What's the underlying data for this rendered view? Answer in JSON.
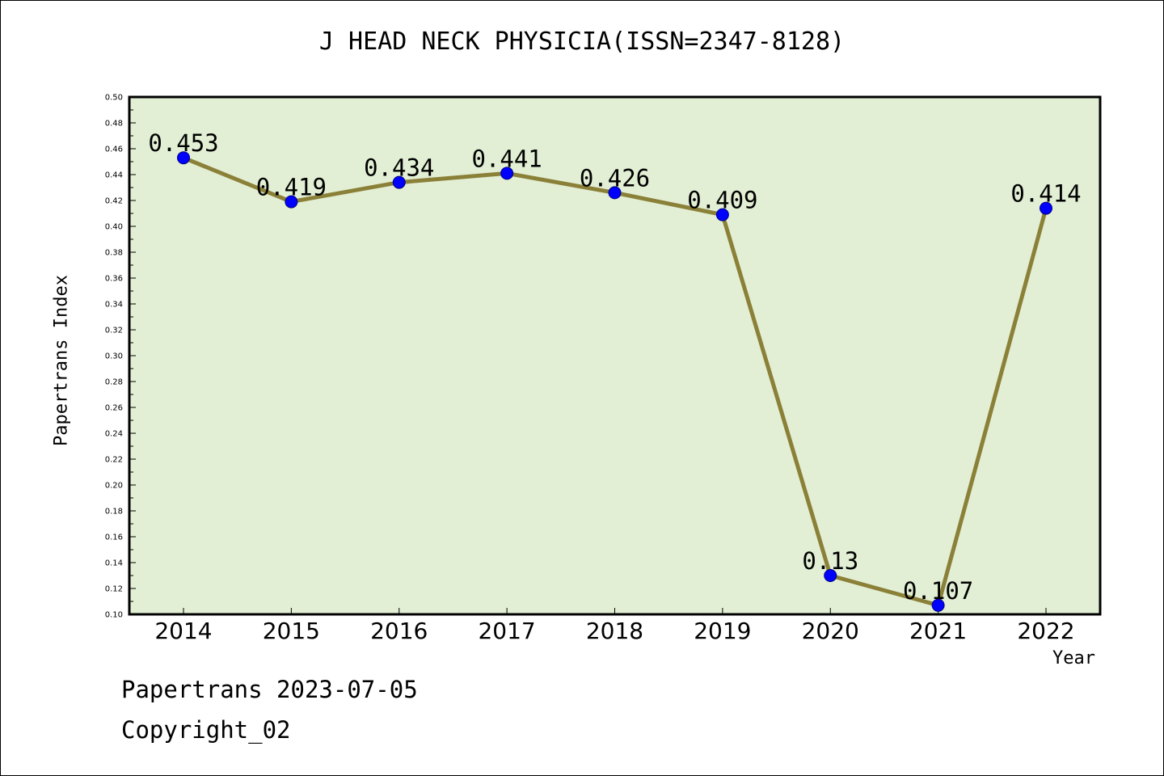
{
  "chart_data": {
    "type": "line",
    "title": "J HEAD NECK PHYSICIA(ISSN=2347-8128)",
    "xlabel": "Year",
    "ylabel": "Papertrans Index",
    "categories": [
      "2014",
      "2015",
      "2016",
      "2017",
      "2018",
      "2019",
      "2020",
      "2021",
      "2022"
    ],
    "values": [
      0.453,
      0.419,
      0.434,
      0.441,
      0.426,
      0.409,
      0.13,
      0.107,
      0.414
    ],
    "data_labels": [
      "0.453",
      "0.419",
      "0.434",
      "0.441",
      "0.426",
      "0.409",
      "0.13",
      "0.107",
      "0.414"
    ],
    "ylim": [
      0.1,
      0.5
    ],
    "y_ticks": [
      "0.10",
      "0.12",
      "0.14",
      "0.16",
      "0.18",
      "0.20",
      "0.22",
      "0.24",
      "0.26",
      "0.28",
      "0.30",
      "0.32",
      "0.34",
      "0.36",
      "0.38",
      "0.40",
      "0.42",
      "0.44",
      "0.46",
      "0.48",
      "0.50"
    ],
    "grid": false,
    "colors": {
      "plot_background": "#e2efd4",
      "line": "#8b8038",
      "marker": "#0000ff"
    }
  },
  "footer": {
    "date_line": "Papertrans 2023-07-05",
    "copyright": "Copyright_02"
  }
}
